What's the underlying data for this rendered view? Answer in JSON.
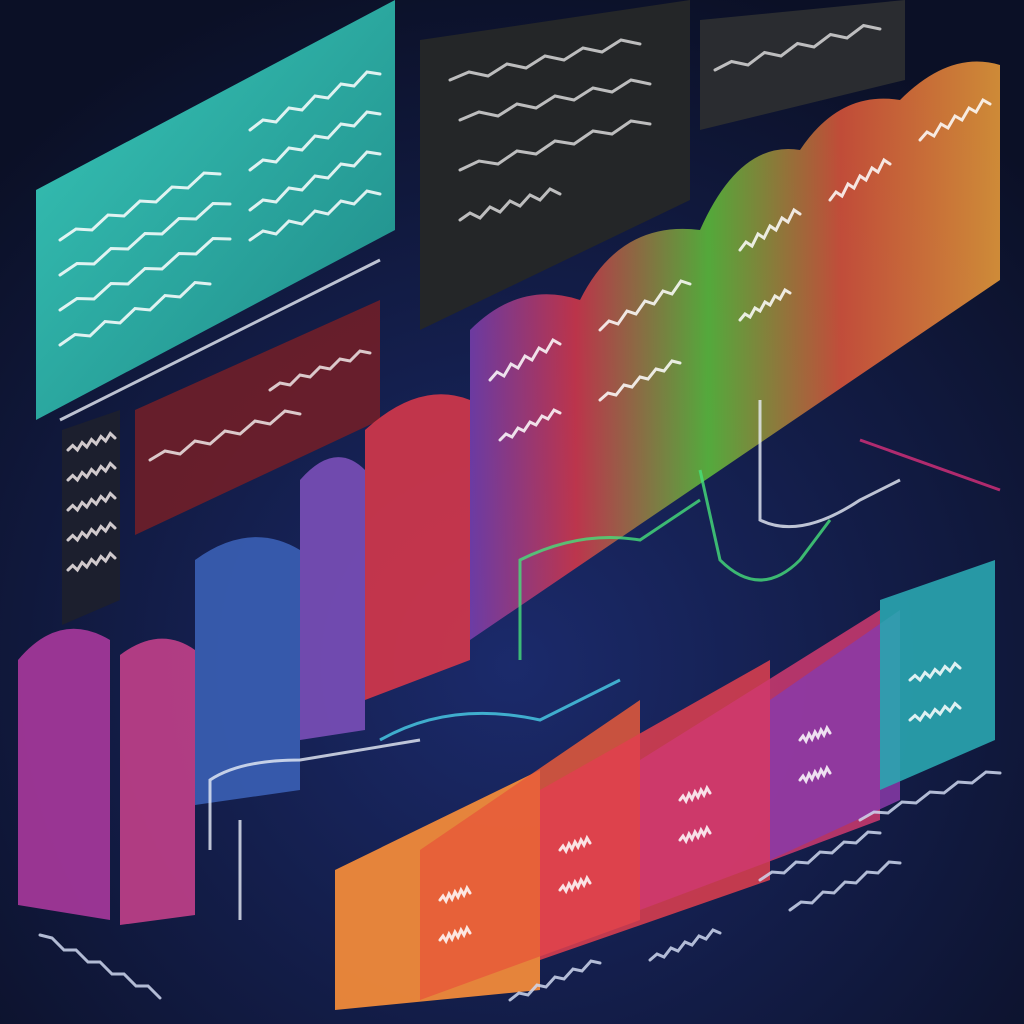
{
  "palette": {
    "background": "#0b1026",
    "background_glow": "#1b2a6b",
    "teal": "#2ab3a6",
    "dark_panel": "#242628",
    "maroon": "#6b1f2a",
    "purple": "#8a3a9c",
    "violet": "#6a4fb0",
    "blue": "#3a5fb5",
    "red": "#d9384a",
    "green": "#5fc23a",
    "orange": "#f0883a",
    "cyan": "#2aa6b0",
    "magenta": "#d8307a",
    "wire_white": "#e8eef8",
    "wire_green": "#46e07a",
    "wire_cyan": "#4ad0e8"
  },
  "decor": {
    "panel_fill": 0.7,
    "bar_fill": 0.75,
    "glyph_opacity": 0.85
  }
}
